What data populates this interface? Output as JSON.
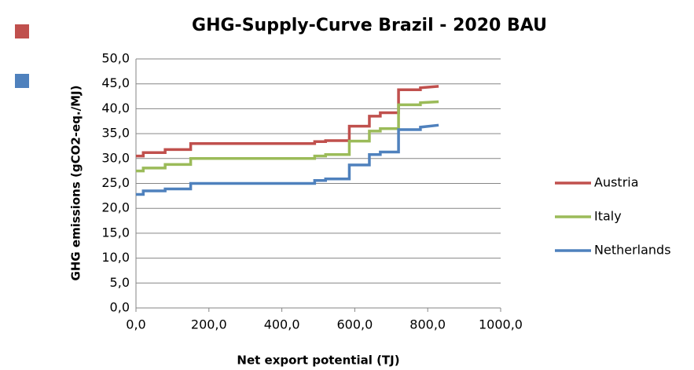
{
  "chart_data": {
    "type": "line",
    "title": "GHG-Supply-Curve Brazil - 2020 BAU",
    "x_label": "Net export potential (TJ)",
    "y_label": "GHG emissions (gCO2-eq./MJ)",
    "x": [
      0,
      20,
      20,
      80,
      80,
      150,
      150,
      490,
      490,
      520,
      520,
      585,
      585,
      640,
      640,
      670,
      670,
      720,
      720,
      780,
      780,
      830
    ],
    "series": [
      {
        "name": "Austria",
        "color": "#c0504d",
        "values": [
          30.5,
          30.5,
          31.2,
          31.2,
          31.8,
          31.8,
          33.0,
          33.0,
          33.4,
          33.4,
          33.6,
          33.6,
          36.5,
          36.5,
          38.5,
          38.5,
          39.2,
          39.2,
          43.8,
          43.8,
          44.2,
          44.5
        ]
      },
      {
        "name": "Italy",
        "color": "#9bbb59",
        "values": [
          27.5,
          27.5,
          28.1,
          28.1,
          28.8,
          28.8,
          30.0,
          30.0,
          30.5,
          30.5,
          30.8,
          30.8,
          33.5,
          33.5,
          35.5,
          35.5,
          36.0,
          36.0,
          40.8,
          40.8,
          41.2,
          41.4
        ]
      },
      {
        "name": "Netherlands",
        "color": "#4f81bd",
        "values": [
          22.8,
          22.8,
          23.5,
          23.5,
          23.9,
          23.9,
          25.0,
          25.0,
          25.6,
          25.6,
          25.9,
          25.9,
          28.7,
          28.7,
          30.8,
          30.8,
          31.3,
          31.3,
          35.8,
          35.8,
          36.3,
          36.7
        ]
      }
    ],
    "xlim": [
      0,
      1000
    ],
    "xticks": [
      {
        "value": 0,
        "label": "0,0"
      },
      {
        "value": 200,
        "label": "200,0"
      },
      {
        "value": 400,
        "label": "400,0"
      },
      {
        "value": 600,
        "label": "600,0"
      },
      {
        "value": 800,
        "label": "800,0"
      },
      {
        "value": 1000,
        "label": "1000,0"
      }
    ],
    "ylim": [
      0,
      50
    ],
    "yticks": [
      {
        "value": 0,
        "label": "0,0"
      },
      {
        "value": 5,
        "label": "5,0"
      },
      {
        "value": 10,
        "label": "10,0"
      },
      {
        "value": 15,
        "label": "15,0"
      },
      {
        "value": 20,
        "label": "20,0"
      },
      {
        "value": 25,
        "label": "25,0"
      },
      {
        "value": 30,
        "label": "30,0"
      },
      {
        "value": 35,
        "label": "35,0"
      },
      {
        "value": 40,
        "label": "40,0"
      },
      {
        "value": 45,
        "label": "45,0"
      },
      {
        "value": 50,
        "label": "50,0"
      }
    ],
    "grid": true,
    "legend": "right"
  }
}
